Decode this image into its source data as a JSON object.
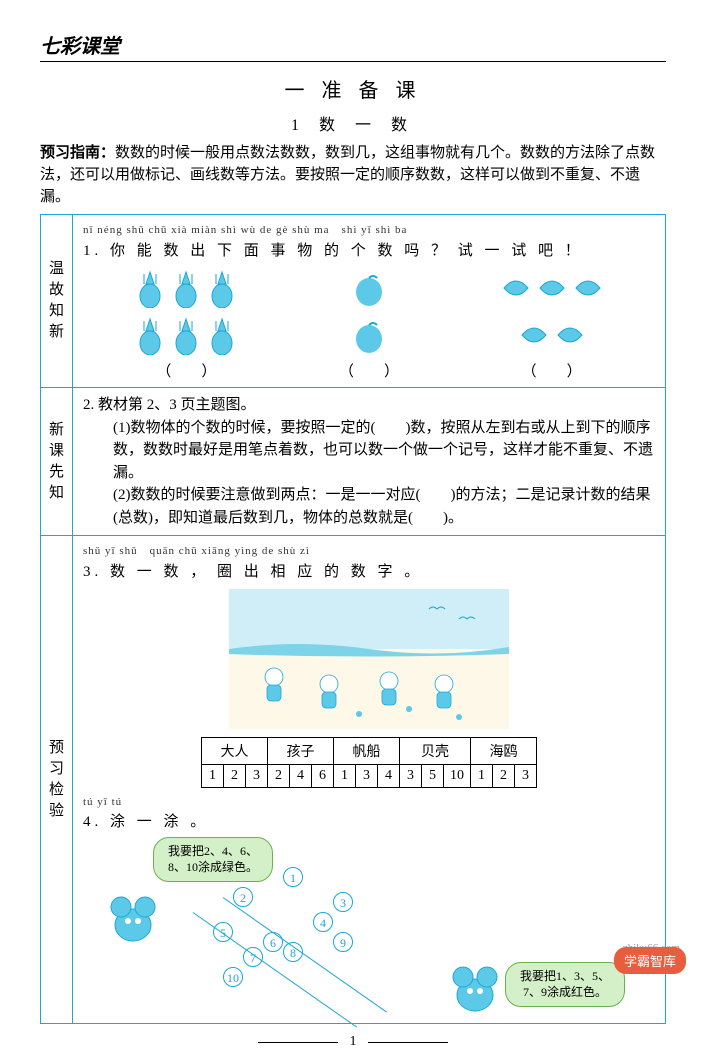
{
  "header": {
    "logo": "七彩课堂",
    "title": "一 准 备 课",
    "subtitle": "1 数 一 数"
  },
  "guide": {
    "label": "预习指南：",
    "text": "数数的时候一般用点数法数数，数到几，这组事物就有几个。数数的方法除了点数法，还可以用做标记、画线数等方法。要按照一定的顺序数数，这样可以做到不重复、不遗漏。"
  },
  "sections": {
    "wengu": {
      "label": "温故知新",
      "item1": {
        "pinyin": "nǐ néng shǔ chū xià miàn shì wù de gè shù ma　shì yī shì ba",
        "text": "1. 你 能 数 出 下 面 事 物 的 个 数 吗 ？ 试 一 试 吧 ！",
        "pineapple_count": 6,
        "blob_count": 2,
        "leaf_count": 5,
        "blank": "（　　）"
      }
    },
    "xinke": {
      "label": "新课先知",
      "item2_head": "2. 教材第 2、3 页主题图。",
      "item2_1": "(1)数物体的个数的时候，要按照一定的(　　)数，按照从左到右或从上到下的顺序数，数数时最好是用笔点着数，也可以数一个做一个记号，这样才能不重复、不遗漏。",
      "item2_2": "(2)数数的时候要注意做到两点：一是一一对应(　　)的方法；二是记录计数的结果(总数)，即知道最后数到几，物体的总数就是(　　)。"
    },
    "yuxi": {
      "label": "预习检验",
      "item3": {
        "pinyin": "shǔ yī shǔ　quān chū xiāng yìng de shù zì",
        "text": "3. 数 一 数 ， 圈 出 相 应 的 数 字 。",
        "table": {
          "headers": [
            "大人",
            "孩子",
            "帆船",
            "贝壳",
            "海鸥"
          ],
          "rows": [
            [
              "1",
              "2",
              "3",
              "2",
              "4",
              "6",
              "1",
              "3",
              "4",
              "3",
              "5",
              "10",
              "1",
              "2",
              "3"
            ]
          ]
        }
      },
      "item4": {
        "pinyin": "tú yī tú",
        "text": "4. 涂 一 涂 。",
        "speech1": "我要把2、4、6、8、10涂成绿色。",
        "speech2": "我要把1、3、5、7、9涂成红色。",
        "numbers": [
          "1",
          "2",
          "3",
          "4",
          "5",
          "6",
          "7",
          "8",
          "9",
          "10"
        ]
      }
    }
  },
  "footer": {
    "page": "1"
  },
  "watermark": {
    "badge": "学霸智库",
    "domain": "zhiku66.com"
  },
  "colors": {
    "border": "#1ba8d4",
    "fill": "#5dc9e8",
    "bubble_bg": "#d4f0c8",
    "bubble_border": "#6ab04c",
    "badge": "#e85d3d"
  }
}
